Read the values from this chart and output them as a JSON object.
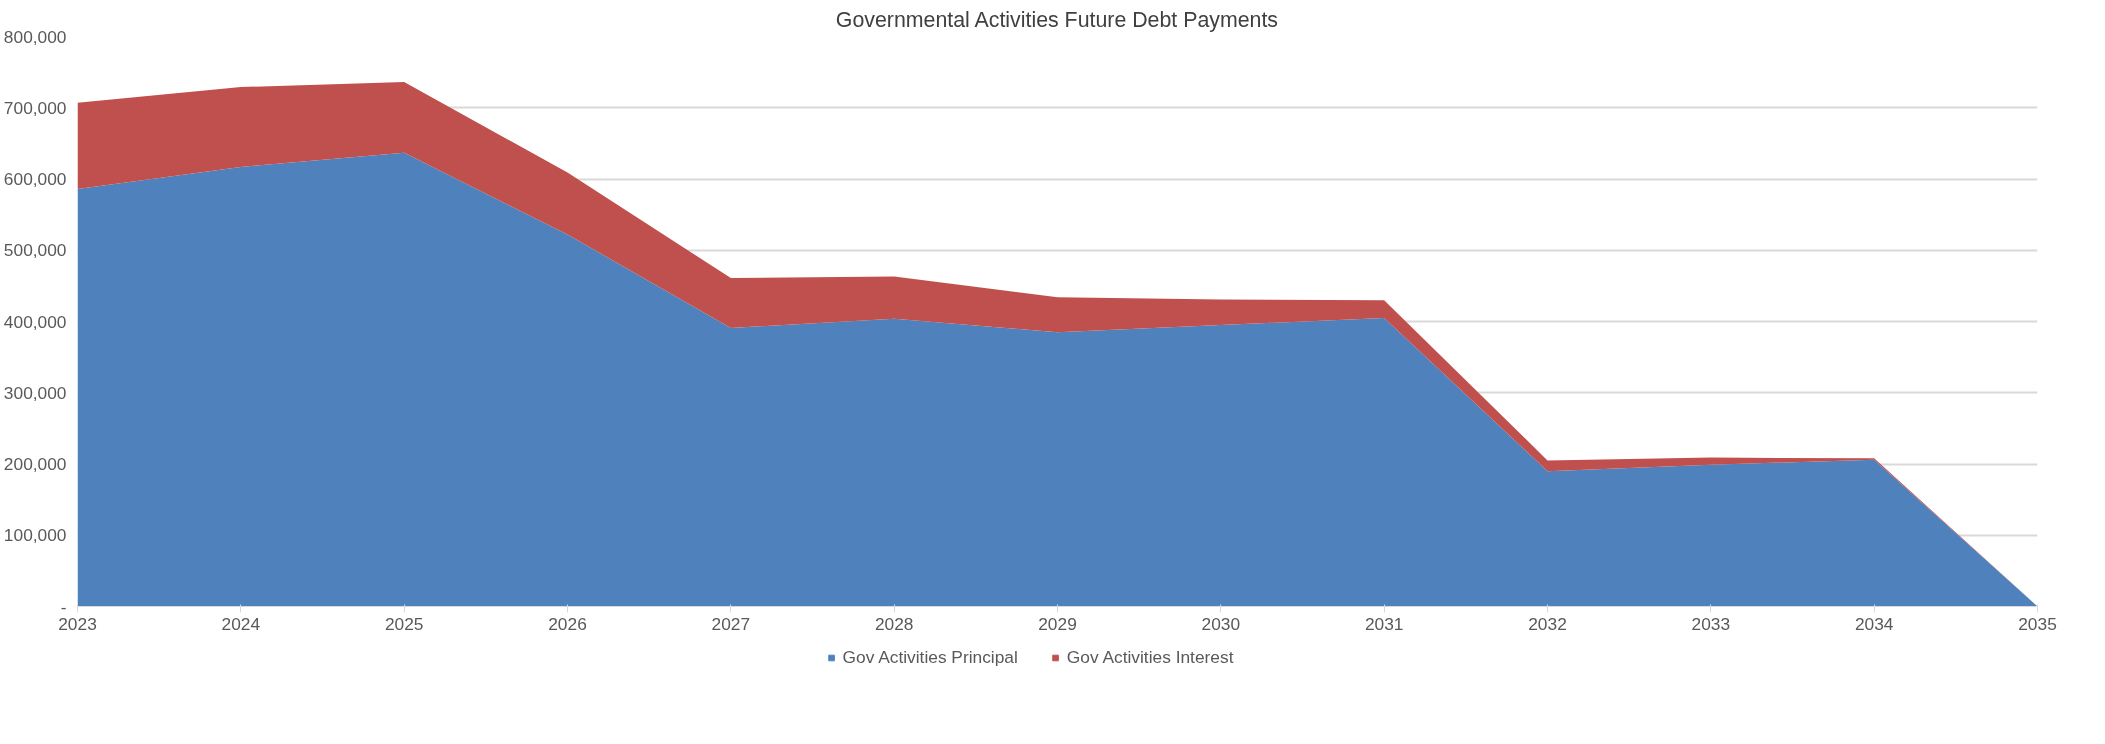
{
  "chart_data": {
    "type": "area",
    "stacked": true,
    "title": "Governmental Activities Future Debt Payments",
    "x": [
      2023,
      2024,
      2025,
      2026,
      2027,
      2028,
      2029,
      2030,
      2031,
      2032,
      2033,
      2034,
      2035
    ],
    "series": [
      {
        "name": "Gov Activities Principal",
        "color": "#4f81bd",
        "values": [
          586000,
          617000,
          637000,
          522000,
          391000,
          404000,
          385000,
          395000,
          405000,
          190000,
          199000,
          206000,
          0
        ]
      },
      {
        "name": "Gov Activities Interest",
        "color": "#c0504d",
        "values": [
          121000,
          112000,
          99000,
          87000,
          70000,
          59000,
          49000,
          36000,
          25000,
          15000,
          10000,
          2000,
          0
        ]
      }
    ],
    "xlim": [
      2023,
      2035
    ],
    "xticks": [
      2023,
      2024,
      2025,
      2026,
      2027,
      2028,
      2029,
      2030,
      2031,
      2032,
      2033,
      2034,
      2035
    ],
    "ylim": [
      0,
      800000
    ],
    "yticks": [
      {
        "value": 0,
        "label": "-"
      },
      {
        "value": 100000,
        "label": "100,000"
      },
      {
        "value": 200000,
        "label": "200,000"
      },
      {
        "value": 300000,
        "label": "300,000"
      },
      {
        "value": 400000,
        "label": "400,000"
      },
      {
        "value": 500000,
        "label": "500,000"
      },
      {
        "value": 600000,
        "label": "600,000"
      },
      {
        "value": 700000,
        "label": "700,000"
      },
      {
        "value": 800000,
        "label": "800,000"
      }
    ],
    "grid": "y",
    "legend": "bottom"
  }
}
